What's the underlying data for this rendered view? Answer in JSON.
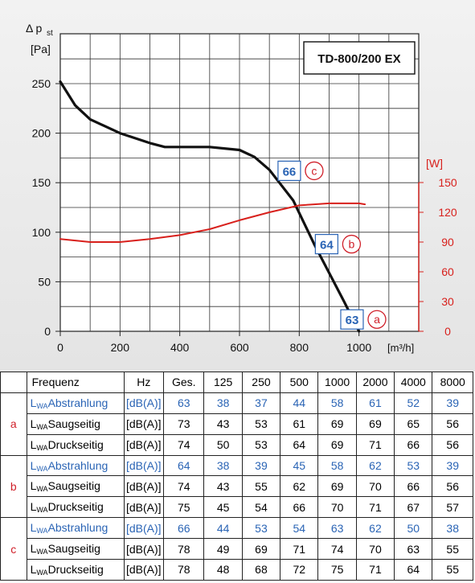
{
  "chart_data": {
    "type": "line",
    "title": "TD-800/200 EX",
    "xlabel": "[m³/h]",
    "ylabel_line1": "Δ p",
    "ylabel_sub": "st",
    "ylabel_unit": "[Pa]",
    "y2label": "[W]",
    "xlim": [
      0,
      1200
    ],
    "ylim": [
      0,
      250
    ],
    "y2lim": [
      0,
      150
    ],
    "x_ticks": [
      "0",
      "200",
      "400",
      "600",
      "800",
      "1000"
    ],
    "y_ticks": [
      "250",
      "200",
      "150",
      "100",
      "50",
      "0"
    ],
    "y2_ticks": [
      "150",
      "120",
      "90",
      "60",
      "30",
      "0"
    ],
    "grid": true,
    "series": [
      {
        "axis": "left",
        "color": "#111111",
        "x": [
          0,
          50,
          100,
          200,
          300,
          350,
          400,
          500,
          600,
          650,
          700,
          780,
          850,
          950,
          1000
        ],
        "y": [
          252,
          228,
          214,
          200,
          190,
          186,
          186,
          186,
          183,
          176,
          163,
          132,
          88,
          30,
          0
        ]
      },
      {
        "axis": "right",
        "color": "#d8201c",
        "x": [
          0,
          100,
          150,
          200,
          300,
          400,
          500,
          600,
          700,
          800,
          850,
          900,
          950,
          1000,
          1020
        ],
        "y": [
          93,
          90,
          90,
          90,
          93,
          97,
          103,
          112,
          120,
          127,
          128,
          129,
          129,
          129,
          128
        ]
      }
    ],
    "annotations": [
      {
        "value": "66",
        "letter": "c",
        "x": 850,
        "y": 162
      },
      {
        "value": "64",
        "letter": "b",
        "x": 975,
        "y": 88
      },
      {
        "value": "63",
        "letter": "a",
        "x": 1060,
        "y": 12
      }
    ]
  },
  "table": {
    "headers": [
      "Frequenz",
      "Hz",
      "Ges.",
      "125",
      "250",
      "500",
      "1000",
      "2000",
      "4000",
      "8000"
    ],
    "groups": [
      {
        "label": "a",
        "rows": [
          {
            "name": "Abstrahlung",
            "unit": "[dB(A)]",
            "values": [
              "63",
              "38",
              "37",
              "44",
              "58",
              "61",
              "52",
              "39"
            ],
            "highlight": true
          },
          {
            "name": "Saugseitig",
            "unit": "[dB(A)]",
            "values": [
              "73",
              "43",
              "53",
              "61",
              "69",
              "69",
              "65",
              "56"
            ],
            "highlight": false
          },
          {
            "name": "Druckseitig",
            "unit": "[dB(A)]",
            "values": [
              "74",
              "50",
              "53",
              "64",
              "69",
              "71",
              "66",
              "56"
            ],
            "highlight": false
          }
        ]
      },
      {
        "label": "b",
        "rows": [
          {
            "name": "Abstrahlung",
            "unit": "[dB(A)]",
            "values": [
              "64",
              "38",
              "39",
              "45",
              "58",
              "62",
              "53",
              "39"
            ],
            "highlight": true
          },
          {
            "name": "Saugseitig",
            "unit": "[dB(A)]",
            "values": [
              "74",
              "43",
              "55",
              "62",
              "69",
              "70",
              "66",
              "56"
            ],
            "highlight": false
          },
          {
            "name": "Druckseitig",
            "unit": "[dB(A)]",
            "values": [
              "75",
              "45",
              "54",
              "66",
              "70",
              "71",
              "67",
              "57"
            ],
            "highlight": false
          }
        ]
      },
      {
        "label": "c",
        "rows": [
          {
            "name": "Abstrahlung",
            "unit": "[dB(A)]",
            "values": [
              "66",
              "44",
              "53",
              "54",
              "63",
              "62",
              "50",
              "38"
            ],
            "highlight": true
          },
          {
            "name": "Saugseitig",
            "unit": "[dB(A)]",
            "values": [
              "78",
              "49",
              "69",
              "71",
              "74",
              "70",
              "63",
              "55"
            ],
            "highlight": false
          },
          {
            "name": "Druckseitig",
            "unit": "[dB(A)]",
            "values": [
              "78",
              "48",
              "68",
              "72",
              "75",
              "71",
              "64",
              "55"
            ],
            "highlight": false
          }
        ]
      }
    ],
    "lwa_main": "L",
    "lwa_sub": "WA"
  },
  "colors": {
    "blue": "#2a64b5",
    "red": "#d0202a",
    "pressure_line": "#111111",
    "power_line": "#d8201c"
  }
}
